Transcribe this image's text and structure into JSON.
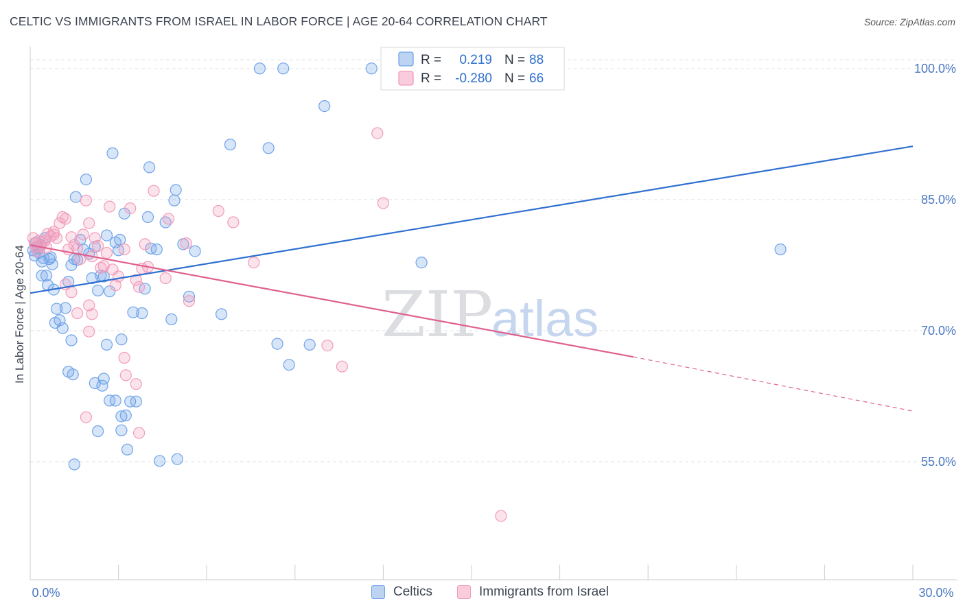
{
  "title": "CELTIC VS IMMIGRANTS FROM ISRAEL IN LABOR FORCE | AGE 20-64 CORRELATION CHART",
  "source": "Source: ZipAtlas.com",
  "watermark": {
    "zip": "ZIP",
    "atlas": "atlas"
  },
  "legend_stats": [
    {
      "r_label": "R =",
      "r_value": "0.219",
      "n_label": "N =",
      "n_value": "88"
    },
    {
      "r_label": "R =",
      "r_value": "-0.280",
      "n_label": "N =",
      "n_value": "66"
    }
  ],
  "chart_data": {
    "type": "scatter",
    "title": "CELTIC VS IMMIGRANTS FROM ISRAEL IN LABOR FORCE | AGE 20-64 CORRELATION CHART",
    "xlabel": "",
    "ylabel": "In Labor Force | Age 20-64",
    "xlim": [
      0,
      30
    ],
    "ylim": [
      41.5,
      102.5
    ],
    "x_tick_labels": [
      "0.0%",
      "30.0%"
    ],
    "y_ticks": [
      55,
      70,
      85,
      100
    ],
    "y_tick_labels": [
      "55.0%",
      "70.0%",
      "85.0%",
      "100.0%"
    ],
    "grid": true,
    "legend_position": "top-center",
    "series": [
      {
        "name": "Celtics",
        "color": "#6fa3e8",
        "line_color": "#2f6fd0",
        "r": 0.219,
        "n": 88,
        "trend": {
          "x": [
            0,
            30
          ],
          "y": [
            74.3,
            91.1
          ]
        },
        "points": [
          [
            0.1,
            79.2
          ],
          [
            0.15,
            78.6
          ],
          [
            0.2,
            80.1
          ],
          [
            0.25,
            79.5
          ],
          [
            0.3,
            78.9
          ],
          [
            0.35,
            79.8
          ],
          [
            0.4,
            77.9
          ],
          [
            0.45,
            78.3
          ],
          [
            0.5,
            80.6
          ],
          [
            0.55,
            76.3
          ],
          [
            0.6,
            75.2
          ],
          [
            0.65,
            78.2
          ],
          [
            0.7,
            78.4
          ],
          [
            0.75,
            77.6
          ],
          [
            0.8,
            74.7
          ],
          [
            0.85,
            70.9
          ],
          [
            0.9,
            72.5
          ],
          [
            1.0,
            71.2
          ],
          [
            1.1,
            70.3
          ],
          [
            1.2,
            72.6
          ],
          [
            1.3,
            75.6
          ],
          [
            1.4,
            77.5
          ],
          [
            1.5,
            78.2
          ],
          [
            1.55,
            85.3
          ],
          [
            1.6,
            78.1
          ],
          [
            1.7,
            80.4
          ],
          [
            1.8,
            79.3
          ],
          [
            1.9,
            87.3
          ],
          [
            2.0,
            78.8
          ],
          [
            2.1,
            76.0
          ],
          [
            2.2,
            79.6
          ],
          [
            2.3,
            74.6
          ],
          [
            2.4,
            76.3
          ],
          [
            2.5,
            76.2
          ],
          [
            2.6,
            80.9
          ],
          [
            2.7,
            74.5
          ],
          [
            2.8,
            90.3
          ],
          [
            2.9,
            80.1
          ],
          [
            3.0,
            79.2
          ],
          [
            3.05,
            80.4
          ],
          [
            3.1,
            69.0
          ],
          [
            3.2,
            83.4
          ],
          [
            3.5,
            72.1
          ],
          [
            3.8,
            72.0
          ],
          [
            3.9,
            74.8
          ],
          [
            4.0,
            83.0
          ],
          [
            4.05,
            88.7
          ],
          [
            4.1,
            79.4
          ],
          [
            4.3,
            79.3
          ],
          [
            4.6,
            82.4
          ],
          [
            4.8,
            71.3
          ],
          [
            4.9,
            84.9
          ],
          [
            4.95,
            86.1
          ],
          [
            5.2,
            79.9
          ],
          [
            5.6,
            79.1
          ],
          [
            5.4,
            73.9
          ],
          [
            6.5,
            71.9
          ],
          [
            6.8,
            91.3
          ],
          [
            7.8,
            100.0
          ],
          [
            8.1,
            90.9
          ],
          [
            8.4,
            68.5
          ],
          [
            8.6,
            100.0
          ],
          [
            8.8,
            66.1
          ],
          [
            9.5,
            68.4
          ],
          [
            10.0,
            95.7
          ],
          [
            11.6,
            100.0
          ],
          [
            13.3,
            77.8
          ],
          [
            25.5,
            79.3
          ],
          [
            0.4,
            76.3
          ],
          [
            1.4,
            68.9
          ],
          [
            1.3,
            65.3
          ],
          [
            1.45,
            65.0
          ],
          [
            2.2,
            64.0
          ],
          [
            2.45,
            63.7
          ],
          [
            2.5,
            64.5
          ],
          [
            2.6,
            68.4
          ],
          [
            2.7,
            62.0
          ],
          [
            2.9,
            62.0
          ],
          [
            3.1,
            60.2
          ],
          [
            3.25,
            60.3
          ],
          [
            3.4,
            61.9
          ],
          [
            3.6,
            61.9
          ],
          [
            3.1,
            58.6
          ],
          [
            3.3,
            56.4
          ],
          [
            1.5,
            54.7
          ],
          [
            4.4,
            55.1
          ],
          [
            5.0,
            55.3
          ],
          [
            2.3,
            58.5
          ]
        ]
      },
      {
        "name": "Immigrants from Israel",
        "color": "#f29bb9",
        "line_color": "#e0608e",
        "r": -0.28,
        "n": 66,
        "trend": {
          "x": [
            0,
            20.5
          ],
          "y": [
            79.8,
            67.0
          ]
        },
        "trend_dashed": {
          "x": [
            20.5,
            30
          ],
          "y": [
            67.0,
            60.8
          ]
        },
        "points": [
          [
            0.1,
            80.6
          ],
          [
            0.15,
            80.0
          ],
          [
            0.2,
            79.6
          ],
          [
            0.25,
            79.1
          ],
          [
            0.3,
            80.3
          ],
          [
            0.35,
            79.7
          ],
          [
            0.4,
            80.1
          ],
          [
            0.5,
            80.3
          ],
          [
            0.55,
            79.5
          ],
          [
            0.6,
            81.1
          ],
          [
            0.7,
            80.8
          ],
          [
            0.8,
            81.3
          ],
          [
            0.9,
            80.6
          ],
          [
            1.0,
            82.3
          ],
          [
            1.1,
            83.0
          ],
          [
            1.2,
            82.8
          ],
          [
            1.3,
            79.3
          ],
          [
            1.4,
            80.7
          ],
          [
            1.5,
            79.8
          ],
          [
            1.6,
            79.4
          ],
          [
            1.7,
            78.2
          ],
          [
            1.8,
            81.0
          ],
          [
            1.9,
            84.9
          ],
          [
            2.0,
            82.3
          ],
          [
            2.1,
            78.5
          ],
          [
            2.2,
            80.6
          ],
          [
            2.3,
            79.7
          ],
          [
            2.4,
            77.2
          ],
          [
            2.5,
            77.4
          ],
          [
            2.6,
            78.9
          ],
          [
            2.7,
            84.2
          ],
          [
            2.8,
            77.0
          ],
          [
            2.9,
            75.2
          ],
          [
            3.0,
            76.2
          ],
          [
            3.2,
            79.3
          ],
          [
            3.4,
            84.0
          ],
          [
            3.6,
            75.8
          ],
          [
            3.7,
            75.0
          ],
          [
            3.8,
            77.1
          ],
          [
            3.9,
            79.9
          ],
          [
            4.0,
            77.3
          ],
          [
            4.2,
            86.0
          ],
          [
            4.6,
            76.0
          ],
          [
            4.7,
            82.8
          ],
          [
            5.3,
            80.0
          ],
          [
            5.4,
            73.4
          ],
          [
            6.4,
            83.7
          ],
          [
            6.9,
            82.4
          ],
          [
            7.6,
            77.8
          ],
          [
            11.8,
            92.6
          ],
          [
            12.0,
            84.6
          ],
          [
            10.1,
            68.3
          ],
          [
            10.6,
            65.9
          ],
          [
            3.2,
            66.9
          ],
          [
            3.25,
            64.9
          ],
          [
            3.6,
            63.9
          ],
          [
            3.7,
            58.3
          ],
          [
            1.9,
            60.1
          ],
          [
            2.0,
            69.9
          ],
          [
            1.2,
            75.3
          ],
          [
            1.4,
            74.4
          ],
          [
            1.6,
            72.0
          ],
          [
            2.0,
            72.9
          ],
          [
            2.1,
            71.9
          ],
          [
            16.0,
            48.8
          ],
          [
            0.8,
            81.0
          ]
        ]
      }
    ]
  },
  "bottom_legend": {
    "series1": "Celtics",
    "series2": "Immigrants from Israel"
  }
}
